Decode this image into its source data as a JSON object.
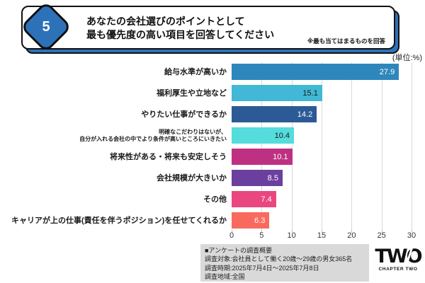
{
  "header": {
    "number": "5",
    "title_line1": "あなたの会社選びのポイントとして",
    "title_line2": "最も優先度の高い項目を回答してください",
    "note": "※最も当てはまるものを回答",
    "accent_color": "#2D72B9"
  },
  "unit_label": "(単位:%)",
  "chart_data": {
    "type": "bar",
    "orientation": "horizontal",
    "unit": "%",
    "title": "あなたの会社選びのポイントとして最も優先度の高い項目を回答してください",
    "categories": [
      "給与水準が高いか",
      "福利厚生や立地など",
      "やりたい仕事ができるか",
      "明確なこだわりはないが、\n自分が入れる会社の中でより条件が高いところにいきたい",
      "将来性がある・将来も安定しそう",
      "会社規模が大きいか",
      "その他",
      "キャリアが上の仕事(責任を伴うポジション)を任せてくれるか"
    ],
    "values": [
      27.9,
      15.1,
      14.2,
      10.4,
      10.1,
      8.5,
      7.4,
      6.3
    ],
    "bar_colors": [
      "#2E87BC",
      "#41B8D5",
      "#2C5A96",
      "#55DCDC",
      "#BE3182",
      "#6B3F9E",
      "#EA4680",
      "#F96A5E"
    ],
    "value_label_colors": [
      "#ffffff",
      "#1a1a1a",
      "#ffffff",
      "#1a1a1a",
      "#ffffff",
      "#ffffff",
      "#ffffff",
      "#ffffff"
    ],
    "xlim": [
      0,
      30
    ],
    "x_ticks": [
      0,
      5,
      10,
      15,
      20,
      25,
      30
    ],
    "grid": true,
    "legend": false
  },
  "footer": {
    "survey": {
      "heading": "■アンケートの調査概要",
      "lines": [
        "調査対象:会社員として働く20歳〜29歳の男女365名",
        "調査時期:2025年7月4日〜2025年7月8日",
        "調査地域:全国"
      ]
    },
    "logo": {
      "brand": "TWO",
      "caption": "CHAPTER TWO"
    }
  }
}
